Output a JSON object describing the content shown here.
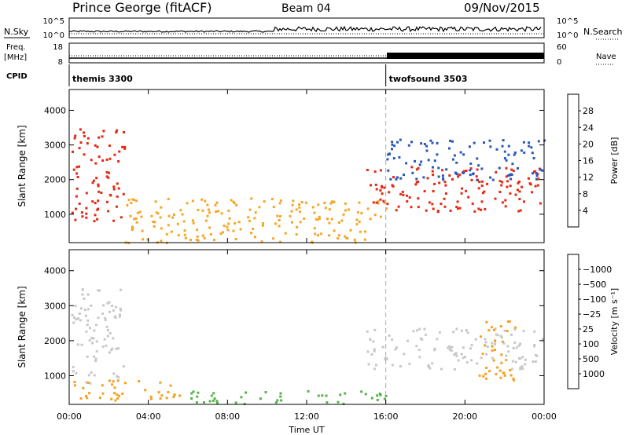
{
  "header": {
    "station": "Prince George (fitACF)",
    "beam": "Beam 04",
    "date": "09/Nov/2015"
  },
  "nsky_panel": {
    "left_label": "N.Sky",
    "right_label": "N.Search",
    "y_ticks": [
      "10^5",
      "10^0"
    ]
  },
  "freq_panel": {
    "left_label_1": "Freq.",
    "left_label_2": "[MHz]",
    "right_label": "Nave",
    "left_ticks": [
      "18",
      "8"
    ],
    "right_ticks": [
      "60",
      "0"
    ]
  },
  "cpid": {
    "label": "CPID",
    "modes": [
      {
        "name": "themis 3300",
        "start_hour": 0
      },
      {
        "name": "twofsound 3503",
        "start_hour": 16
      }
    ]
  },
  "chart_data": [
    {
      "type": "heatmap",
      "quantity": "Power",
      "ylabel": "Slant Range [km]",
      "xlabel": "Time UT",
      "x_ticks": [
        "00:00",
        "04:00",
        "08:00",
        "12:00",
        "16:00",
        "20:00",
        "00:00"
      ],
      "xlim_hours": [
        0,
        24
      ],
      "y_ticks": [
        1000,
        2000,
        3000,
        4000
      ],
      "ylim_km": [
        180,
        4600
      ],
      "colorbar": {
        "label": "Power [dB]",
        "ticks": [
          "4",
          "8",
          "12",
          "16",
          "20",
          "24",
          "28"
        ],
        "colors": [
          "#1d2cf0",
          "#2b57b8",
          "#3f8f7a",
          "#57b84e",
          "#a6d33b",
          "#f2df2e",
          "#f5a623",
          "#f06a1a",
          "#e42a13",
          "#d40d10"
        ]
      },
      "regions": [
        {
          "start_hour": 0.1,
          "end_hour": 2.8,
          "range_lo_km": 800,
          "range_hi_km": 3500,
          "level": "high"
        },
        {
          "start_hour": 2.8,
          "end_hour": 16.0,
          "range_lo_km": 200,
          "range_hi_km": 1500,
          "level": "medium"
        },
        {
          "start_hour": 15.0,
          "end_hour": 24.0,
          "range_lo_km": 1100,
          "range_hi_km": 2400,
          "level": "high"
        },
        {
          "start_hour": 16.0,
          "end_hour": 24.0,
          "range_lo_km": 2000,
          "range_hi_km": 3200,
          "level": "low"
        }
      ]
    },
    {
      "type": "heatmap",
      "quantity": "Velocity",
      "ylabel": "Slant Range [km]",
      "xlabel": "Time UT",
      "x_ticks": [
        "00:00",
        "04:00",
        "08:00",
        "12:00",
        "16:00",
        "20:00",
        "00:00"
      ],
      "xlim_hours": [
        0,
        24
      ],
      "y_ticks": [
        1000,
        2000,
        3000,
        4000
      ],
      "ylim_km": [
        180,
        4600
      ],
      "colorbar": {
        "label": "Velocity [m s⁻¹]",
        "ticks": [
          "1000",
          "500",
          "100",
          "25",
          "−25",
          "−100",
          "−500",
          "−1000"
        ],
        "colors": [
          "#2734b9",
          "#3e7d57",
          "#56b34a",
          "#9cd847",
          "#c8c8c8",
          "#c8c8c8",
          "#f5c541",
          "#f5a020",
          "#f26a14",
          "#e22612"
        ]
      },
      "regions": [
        {
          "start_hour": 0.1,
          "end_hour": 2.8,
          "range_lo_km": 800,
          "range_hi_km": 3500,
          "level": "ground"
        },
        {
          "start_hour": 0.2,
          "end_hour": 6.0,
          "range_lo_km": 300,
          "range_hi_km": 900,
          "level": "negative"
        },
        {
          "start_hour": 6.0,
          "end_hour": 16.0,
          "range_lo_km": 200,
          "range_hi_km": 600,
          "level": "positive"
        },
        {
          "start_hour": 15.0,
          "end_hour": 24.0,
          "range_lo_km": 1200,
          "range_hi_km": 2400,
          "level": "ground"
        },
        {
          "start_hour": 20.5,
          "end_hour": 22.5,
          "range_lo_km": 900,
          "range_hi_km": 2600,
          "level": "negative"
        }
      ]
    }
  ]
}
